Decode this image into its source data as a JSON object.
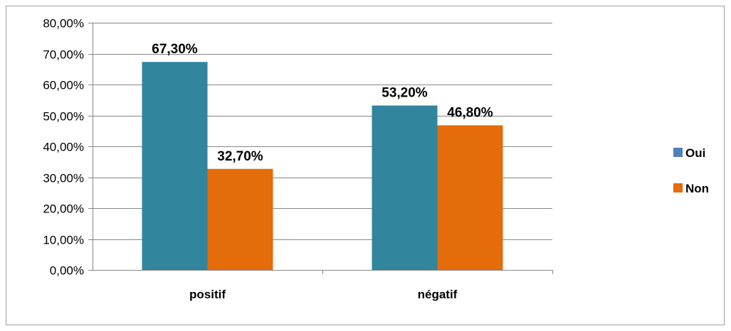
{
  "chart_data": {
    "type": "bar",
    "title": "",
    "xlabel": "",
    "ylabel": "",
    "categories": [
      "positif",
      "négatif"
    ],
    "series": [
      {
        "name": "Oui",
        "values": [
          67.3,
          53.2
        ],
        "labels": [
          "67,30%",
          "53,20%"
        ],
        "color": "#31859c"
      },
      {
        "name": "Non",
        "values": [
          32.7,
          46.8
        ],
        "labels": [
          "32,70%",
          "46,80%"
        ],
        "color": "#e46c0a"
      }
    ],
    "ylim": [
      0,
      80
    ],
    "yticks": [
      0,
      10,
      20,
      30,
      40,
      50,
      60,
      70,
      80
    ],
    "ytick_labels": [
      "0,00%",
      "10,00%",
      "20,00%",
      "30,00%",
      "40,00%",
      "50,00%",
      "60,00%",
      "70,00%",
      "80,00%"
    ],
    "grid": true,
    "legend_position": "right",
    "legend_marker_colors": [
      "#4f81bd",
      "#e46c0a"
    ],
    "gridline_color": "#868686"
  }
}
